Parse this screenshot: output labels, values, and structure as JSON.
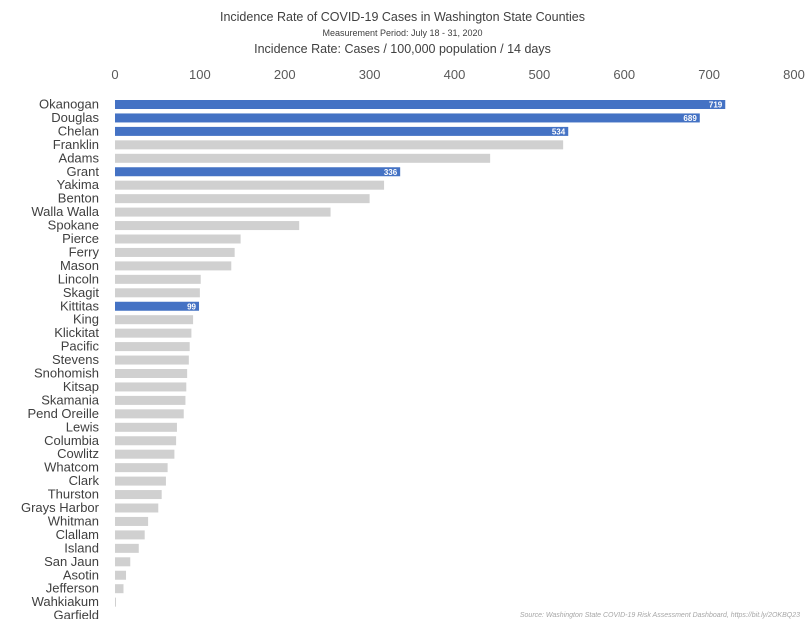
{
  "chart_data": {
    "type": "bar",
    "orientation": "horizontal",
    "title": "Incidence Rate of COVID-19 Cases in Washington State Counties",
    "subtitle": "Measurement Period: July 18 - 31, 2020",
    "axis_title": "Incidence Rate: Cases / 100,000 population / 14 days",
    "xlim": [
      0,
      800
    ],
    "ticks": [
      0,
      100,
      200,
      300,
      400,
      500,
      600,
      700,
      800
    ],
    "tick_position": "top",
    "grid": false,
    "highlight_color": "#4472c4",
    "default_color": "#d0d0d0",
    "categories": [
      "Okanogan",
      "Douglas",
      "Chelan",
      "Franklin",
      "Adams",
      "Grant",
      "Yakima",
      "Benton",
      "Walla Walla",
      "Spokane",
      "Pierce",
      "Ferry",
      "Mason",
      "Lincoln",
      "Skagit",
      "Kittitas",
      "King",
      "Klickitat",
      "Pacific",
      "Stevens",
      "Snohomish",
      "Kitsap",
      "Skamania",
      "Pend Oreille",
      "Lewis",
      "Columbia",
      "Cowlitz",
      "Whatcom",
      "Clark",
      "Thurston",
      "Grays Harbor",
      "Whitman",
      "Clallam",
      "Island",
      "San Jaun",
      "Asotin",
      "Jefferson",
      "Wahkiakum",
      "Garfield"
    ],
    "values": [
      719,
      689,
      534,
      528,
      442,
      336,
      317,
      300,
      254,
      217,
      148,
      141,
      137,
      101,
      100,
      99,
      92,
      90,
      88,
      87,
      85,
      84,
      83,
      81,
      73,
      72,
      70,
      62,
      60,
      55,
      51,
      39,
      35,
      28,
      18,
      13,
      10,
      1,
      0
    ],
    "highlighted": [
      true,
      true,
      true,
      false,
      false,
      true,
      false,
      false,
      false,
      false,
      false,
      false,
      false,
      false,
      false,
      true,
      false,
      false,
      false,
      false,
      false,
      false,
      false,
      false,
      false,
      false,
      false,
      false,
      false,
      false,
      false,
      false,
      false,
      false,
      false,
      false,
      false,
      false,
      false
    ],
    "data_labels": [
      "719",
      "689",
      "534",
      "",
      "",
      "336",
      "",
      "",
      "",
      "",
      "",
      "",
      "",
      "",
      "",
      "99",
      "",
      "",
      "",
      "",
      "",
      "",
      "",
      "",
      "",
      "",
      "",
      "",
      "",
      "",
      "",
      "",
      "",
      "",
      "",
      "",
      "",
      "",
      ""
    ],
    "source": "Source: Washington State COVID-19 Risk Assessment Dashboard, https://bit.ly/2OKBQ23"
  }
}
